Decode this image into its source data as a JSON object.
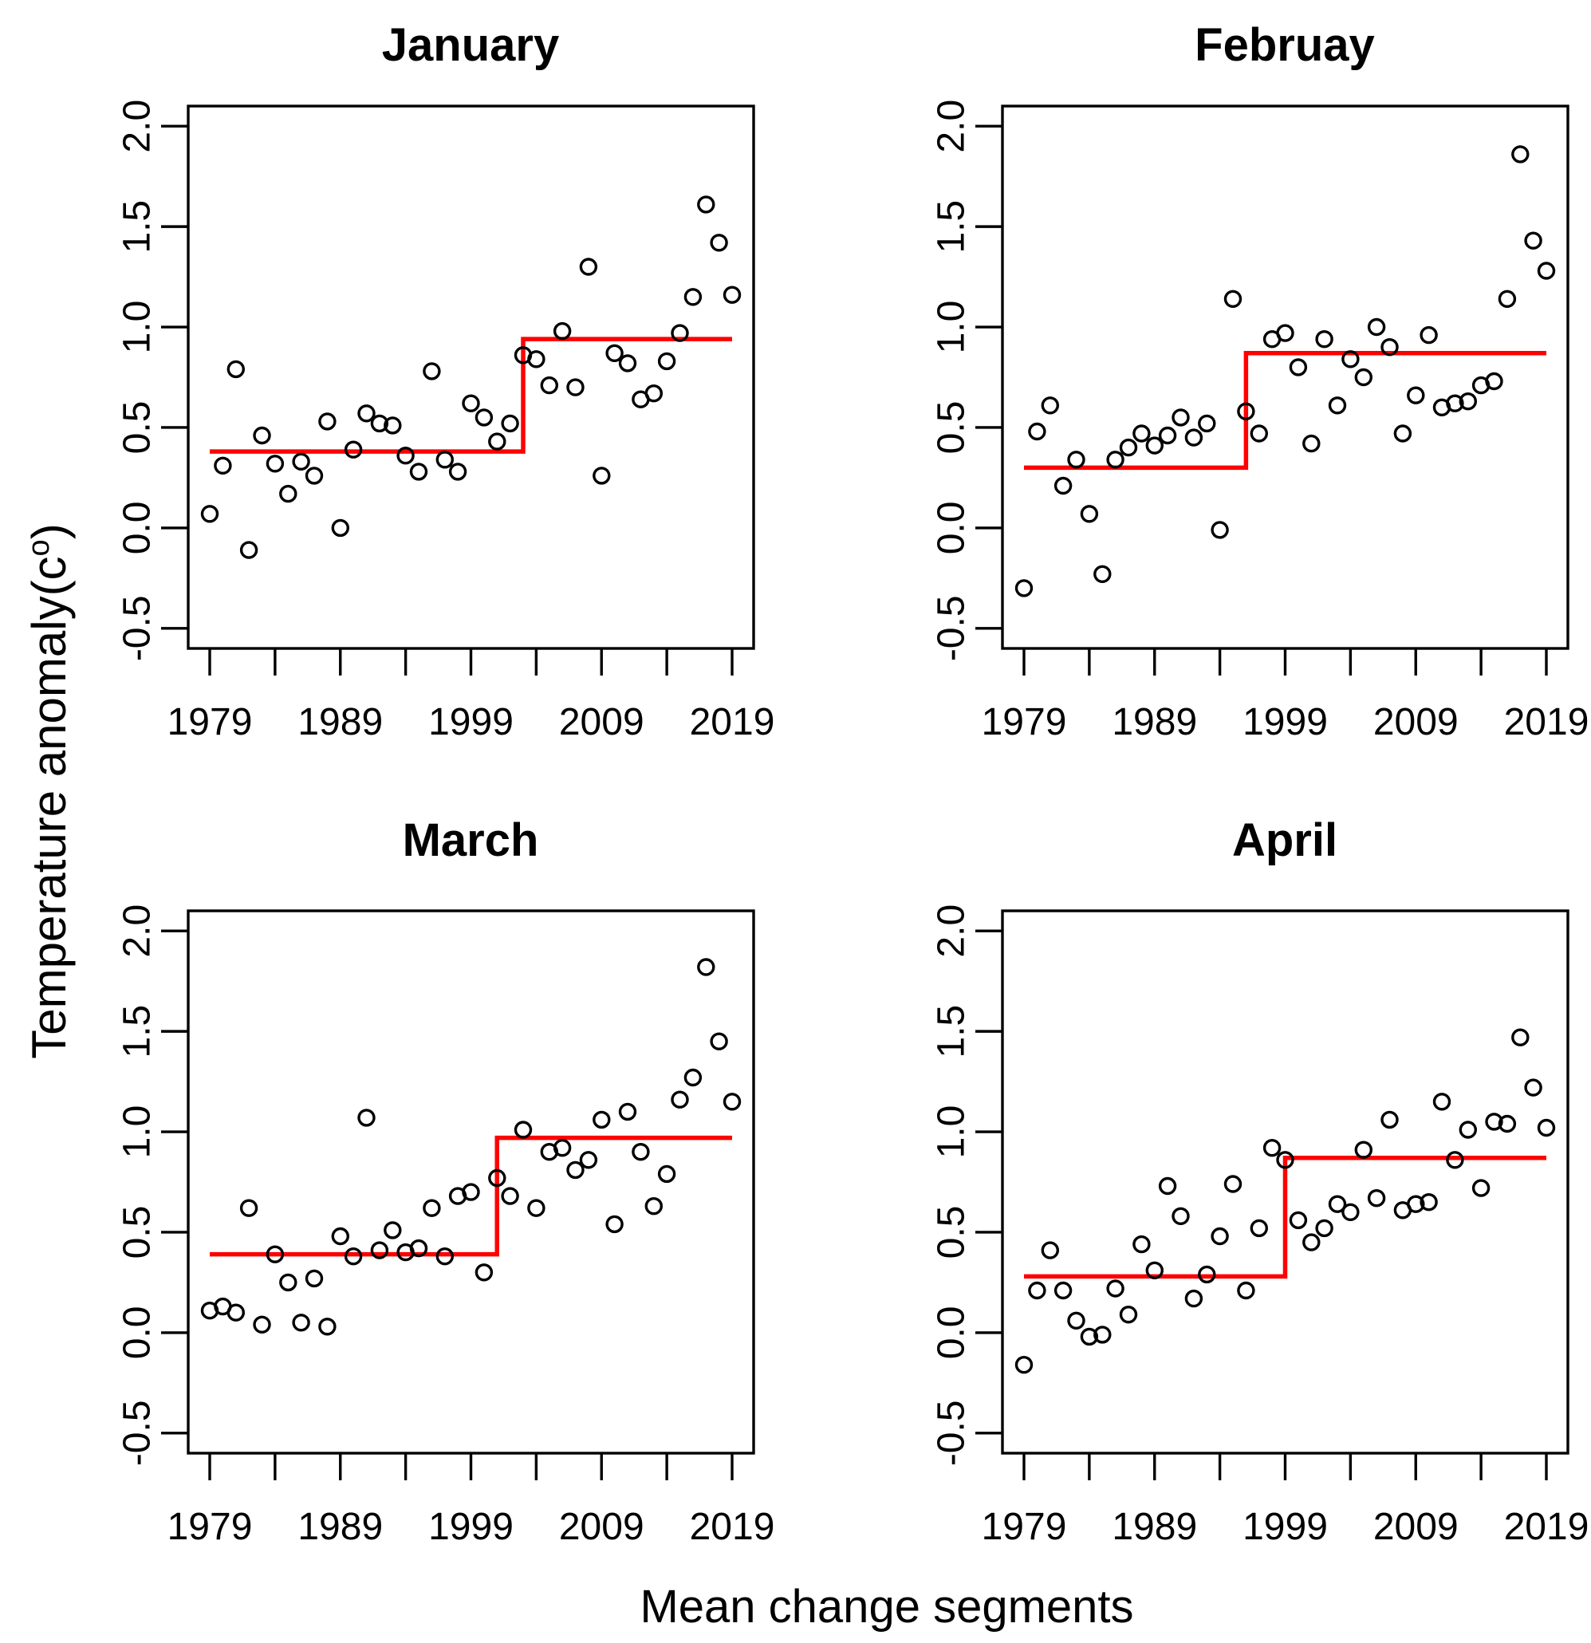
{
  "figure": {
    "ylabel_prefix": "Temperature anomaly(c",
    "ylabel_sup": "o",
    "ylabel_suffix": ")",
    "xlabel": "Mean change segments",
    "background_color": "#ffffff",
    "step_line_color": "#ff0000",
    "point_color": "#000000"
  },
  "axes": {
    "x_tick_years": [
      1979,
      1984,
      1989,
      1994,
      1999,
      2004,
      2009,
      2014,
      2019
    ],
    "x_tick_labels": [
      "1979",
      "1989",
      "1999",
      "2009",
      "2019"
    ],
    "y_tick_values": [
      2.0,
      1.5,
      1.0,
      0.5,
      0.0,
      -0.5
    ],
    "y_tick_labels": [
      "2.0",
      "1.5",
      "1.0",
      "0.5",
      "0.0",
      "-0.5"
    ],
    "xlim": [
      1979,
      2019
    ],
    "ylim": [
      -0.5,
      2.0
    ]
  },
  "chart_data": [
    {
      "type": "scatter",
      "title": "January",
      "xlabel": "Mean change segments",
      "ylabel": "Temperature anomaly(c°)",
      "xlim": [
        1979,
        2019
      ],
      "ylim": [
        -0.5,
        2.0
      ],
      "grid": false,
      "x": [
        1979,
        1980,
        1981,
        1982,
        1983,
        1984,
        1985,
        1986,
        1987,
        1988,
        1989,
        1990,
        1991,
        1992,
        1993,
        1994,
        1995,
        1996,
        1997,
        1998,
        1999,
        2000,
        2001,
        2002,
        2003,
        2004,
        2005,
        2006,
        2007,
        2008,
        2009,
        2010,
        2011,
        2012,
        2013,
        2014,
        2015,
        2016,
        2017,
        2018,
        2019
      ],
      "values": [
        0.07,
        0.31,
        0.79,
        -0.11,
        0.46,
        0.32,
        0.17,
        0.33,
        0.26,
        0.53,
        0.0,
        0.39,
        0.57,
        0.52,
        0.51,
        0.36,
        0.28,
        0.78,
        0.34,
        0.28,
        0.62,
        0.55,
        0.43,
        0.52,
        0.86,
        0.84,
        0.71,
        0.98,
        0.7,
        1.3,
        0.26,
        0.87,
        0.82,
        0.64,
        0.67,
        0.83,
        0.97,
        1.15,
        1.61,
        1.42,
        1.16
      ],
      "step_line": {
        "segment1_mean": 0.38,
        "segment2_mean": 0.94,
        "change_year": 2003,
        "color": "#ff0000"
      }
    },
    {
      "type": "scatter",
      "title": "Februay",
      "xlabel": "Mean change segments",
      "ylabel": "Temperature anomaly(c°)",
      "xlim": [
        1979,
        2019
      ],
      "ylim": [
        -0.5,
        2.0
      ],
      "grid": false,
      "x": [
        1979,
        1980,
        1981,
        1982,
        1983,
        1984,
        1985,
        1986,
        1987,
        1988,
        1989,
        1990,
        1991,
        1992,
        1993,
        1994,
        1995,
        1996,
        1997,
        1998,
        1999,
        2000,
        2001,
        2002,
        2003,
        2004,
        2005,
        2006,
        2007,
        2008,
        2009,
        2010,
        2011,
        2012,
        2013,
        2014,
        2015,
        2016,
        2017,
        2018,
        2019
      ],
      "values": [
        -0.3,
        0.48,
        0.61,
        0.21,
        0.34,
        0.07,
        -0.23,
        0.34,
        0.4,
        0.47,
        0.41,
        0.46,
        0.55,
        0.45,
        0.52,
        -0.01,
        1.14,
        0.58,
        0.47,
        0.94,
        0.97,
        0.8,
        0.42,
        0.94,
        0.61,
        0.84,
        0.75,
        1.0,
        0.9,
        0.47,
        0.66,
        0.96,
        0.6,
        0.62,
        0.63,
        0.71,
        0.73,
        1.14,
        1.86,
        1.43,
        1.28
      ],
      "step_line": {
        "segment1_mean": 0.3,
        "segment2_mean": 0.87,
        "change_year": 1996,
        "color": "#ff0000"
      }
    },
    {
      "type": "scatter",
      "title": "March",
      "xlabel": "Mean change segments",
      "ylabel": "Temperature anomaly(c°)",
      "xlim": [
        1979,
        2019
      ],
      "ylim": [
        -0.5,
        2.0
      ],
      "grid": false,
      "x": [
        1979,
        1980,
        1981,
        1982,
        1983,
        1984,
        1985,
        1986,
        1987,
        1988,
        1989,
        1990,
        1991,
        1992,
        1993,
        1994,
        1995,
        1996,
        1997,
        1998,
        1999,
        2000,
        2001,
        2002,
        2003,
        2004,
        2005,
        2006,
        2007,
        2008,
        2009,
        2010,
        2011,
        2012,
        2013,
        2014,
        2015,
        2016,
        2017,
        2018,
        2019
      ],
      "values": [
        0.11,
        0.13,
        0.1,
        0.62,
        0.04,
        0.39,
        0.25,
        0.05,
        0.27,
        0.03,
        0.48,
        0.38,
        1.07,
        0.41,
        0.51,
        0.4,
        0.42,
        0.62,
        0.38,
        0.68,
        0.7,
        0.3,
        0.77,
        0.68,
        1.01,
        0.62,
        0.9,
        0.92,
        0.81,
        0.86,
        1.06,
        0.54,
        1.1,
        0.9,
        0.63,
        0.79,
        1.16,
        1.27,
        1.82,
        1.45,
        1.15
      ],
      "step_line": {
        "segment1_mean": 0.39,
        "segment2_mean": 0.97,
        "change_year": 2001,
        "color": "#ff0000"
      }
    },
    {
      "type": "scatter",
      "title": "April",
      "xlabel": "Mean change segments",
      "ylabel": "Temperature anomaly(c°)",
      "xlim": [
        1979,
        2019
      ],
      "ylim": [
        -0.5,
        2.0
      ],
      "grid": false,
      "x": [
        1979,
        1980,
        1981,
        1982,
        1983,
        1984,
        1985,
        1986,
        1987,
        1988,
        1989,
        1990,
        1991,
        1992,
        1993,
        1994,
        1995,
        1996,
        1997,
        1998,
        1999,
        2000,
        2001,
        2002,
        2003,
        2004,
        2005,
        2006,
        2007,
        2008,
        2009,
        2010,
        2011,
        2012,
        2013,
        2014,
        2015,
        2016,
        2017,
        2018,
        2019
      ],
      "values": [
        -0.16,
        0.21,
        0.41,
        0.21,
        0.06,
        -0.02,
        -0.01,
        0.22,
        0.09,
        0.44,
        0.31,
        0.73,
        0.58,
        0.17,
        0.29,
        0.48,
        0.74,
        0.21,
        0.52,
        0.92,
        0.86,
        0.56,
        0.45,
        0.52,
        0.64,
        0.6,
        0.91,
        0.67,
        1.06,
        0.61,
        0.64,
        0.65,
        1.15,
        0.86,
        1.01,
        0.72,
        1.05,
        1.04,
        1.47,
        1.22,
        1.02
      ],
      "step_line": {
        "segment1_mean": 0.28,
        "segment2_mean": 0.87,
        "change_year": 1999,
        "color": "#ff0000"
      }
    }
  ]
}
